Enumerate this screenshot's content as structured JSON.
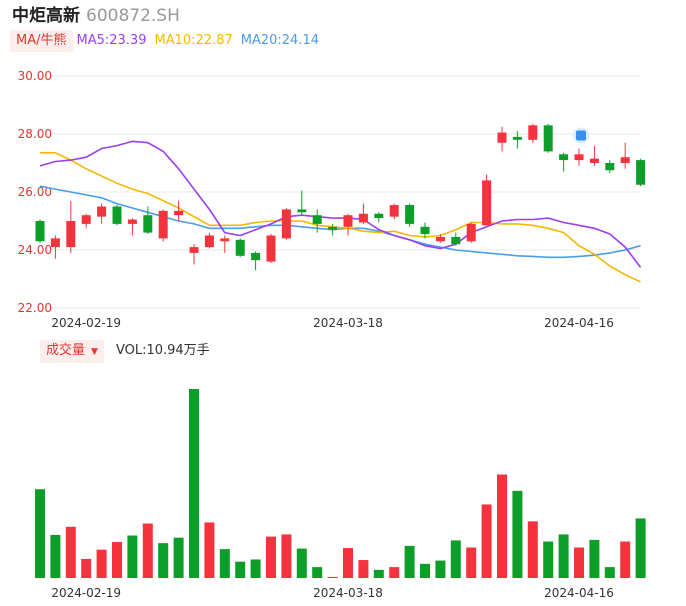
{
  "header": {
    "name": "中炬高新",
    "code": "600872.SH"
  },
  "ma_legend": {
    "tag": "MA/牛熊",
    "items": [
      {
        "label": "MA5:23.39",
        "color": "#9b3ff0"
      },
      {
        "label": "MA10:22.87",
        "color": "#f5b800"
      },
      {
        "label": "MA20:24.14",
        "color": "#4a9ee8"
      }
    ]
  },
  "volume_legend": {
    "tag": "成交量",
    "caret": "▼",
    "label": "VOL:10.94万手"
  },
  "colors": {
    "up": "#f5333f",
    "down": "#0d9e2a",
    "axis_text": "#e2382e",
    "date_text": "#333333",
    "grid": "#e8e8e8"
  },
  "chart_data": [
    {
      "type": "candlestick",
      "y_ticks": [
        "30.00",
        "28.00",
        "26.00",
        "24.00",
        "22.00"
      ],
      "ylim": [
        22,
        30
      ],
      "x_tick_labels": [
        {
          "index": 3,
          "label": "2024-02-19"
        },
        {
          "index": 20,
          "label": "2024-03-18"
        },
        {
          "index": 35,
          "label": "2024-04-16"
        }
      ],
      "candles": [
        {
          "o": 25.0,
          "c": 24.3,
          "h": 25.05,
          "l": 24.25
        },
        {
          "o": 24.1,
          "c": 24.4,
          "h": 24.5,
          "l": 23.7
        },
        {
          "o": 24.1,
          "c": 25.0,
          "h": 25.7,
          "l": 23.9
        },
        {
          "o": 24.9,
          "c": 25.2,
          "h": 25.25,
          "l": 24.75
        },
        {
          "o": 25.15,
          "c": 25.5,
          "h": 25.6,
          "l": 24.9
        },
        {
          "o": 25.5,
          "c": 24.9,
          "h": 25.55,
          "l": 24.85
        },
        {
          "o": 24.9,
          "c": 25.05,
          "h": 25.1,
          "l": 24.5
        },
        {
          "o": 25.2,
          "c": 24.6,
          "h": 25.5,
          "l": 24.55
        },
        {
          "o": 24.4,
          "c": 25.35,
          "h": 25.4,
          "l": 24.3
        },
        {
          "o": 25.2,
          "c": 25.35,
          "h": 25.7,
          "l": 25.0
        },
        {
          "o": 23.9,
          "c": 24.1,
          "h": 24.2,
          "l": 23.5
        },
        {
          "o": 24.1,
          "c": 24.5,
          "h": 24.6,
          "l": 24.05
        },
        {
          "o": 24.3,
          "c": 24.4,
          "h": 24.5,
          "l": 23.9
        },
        {
          "o": 24.35,
          "c": 23.8,
          "h": 24.4,
          "l": 23.75
        },
        {
          "o": 23.9,
          "c": 23.65,
          "h": 23.95,
          "l": 23.3
        },
        {
          "o": 23.6,
          "c": 24.5,
          "h": 24.55,
          "l": 23.55
        },
        {
          "o": 24.4,
          "c": 25.4,
          "h": 25.45,
          "l": 24.35
        },
        {
          "o": 25.4,
          "c": 25.3,
          "h": 26.05,
          "l": 25.2
        },
        {
          "o": 25.2,
          "c": 24.9,
          "h": 25.4,
          "l": 24.6
        },
        {
          "o": 24.8,
          "c": 24.7,
          "h": 24.9,
          "l": 24.5
        },
        {
          "o": 24.8,
          "c": 25.2,
          "h": 25.25,
          "l": 24.5
        },
        {
          "o": 24.95,
          "c": 25.25,
          "h": 25.6,
          "l": 24.9
        },
        {
          "o": 25.25,
          "c": 25.1,
          "h": 25.3,
          "l": 24.95
        },
        {
          "o": 25.15,
          "c": 25.55,
          "h": 25.6,
          "l": 25.05
        },
        {
          "o": 25.55,
          "c": 24.9,
          "h": 25.6,
          "l": 24.8
        },
        {
          "o": 24.8,
          "c": 24.55,
          "h": 24.95,
          "l": 24.4
        },
        {
          "o": 24.3,
          "c": 24.45,
          "h": 24.55,
          "l": 24.25
        },
        {
          "o": 24.45,
          "c": 24.2,
          "h": 24.6,
          "l": 24.15
        },
        {
          "o": 24.3,
          "c": 24.9,
          "h": 24.95,
          "l": 24.25
        },
        {
          "o": 24.85,
          "c": 26.4,
          "h": 26.6,
          "l": 24.85
        },
        {
          "o": 27.7,
          "c": 28.05,
          "h": 28.25,
          "l": 27.4
        },
        {
          "o": 27.9,
          "c": 27.8,
          "h": 28.1,
          "l": 27.5
        },
        {
          "o": 27.8,
          "c": 28.3,
          "h": 28.35,
          "l": 27.7
        },
        {
          "o": 28.3,
          "c": 27.4,
          "h": 28.35,
          "l": 27.35
        },
        {
          "o": 27.3,
          "c": 27.1,
          "h": 27.35,
          "l": 26.7
        },
        {
          "o": 27.1,
          "c": 27.3,
          "h": 27.5,
          "l": 26.9
        },
        {
          "o": 27.0,
          "c": 27.15,
          "h": 27.6,
          "l": 26.9
        },
        {
          "o": 27.0,
          "c": 26.75,
          "h": 27.1,
          "l": 26.65
        },
        {
          "o": 27.0,
          "c": 27.2,
          "h": 27.7,
          "l": 26.8
        },
        {
          "o": 27.1,
          "c": 26.25,
          "h": 27.15,
          "l": 26.2
        }
      ],
      "ma5": [
        26.9,
        27.05,
        27.1,
        27.2,
        27.5,
        27.6,
        27.75,
        27.7,
        27.4,
        26.8,
        26.1,
        25.4,
        24.6,
        24.5,
        24.7,
        24.9,
        25.15,
        25.2,
        25.15,
        25.1,
        25.1,
        25.05,
        24.7,
        24.5,
        24.35,
        24.15,
        24.05,
        24.2,
        24.6,
        24.8,
        25.0,
        25.05,
        25.05,
        25.1,
        24.95,
        24.85,
        24.75,
        24.55,
        24.1,
        23.4
      ],
      "ma10": [
        27.35,
        27.35,
        27.1,
        26.8,
        26.55,
        26.3,
        26.1,
        25.95,
        25.7,
        25.45,
        25.15,
        24.85,
        24.85,
        24.85,
        24.95,
        25.0,
        25.0,
        25.0,
        24.85,
        24.8,
        24.75,
        24.65,
        24.6,
        24.65,
        24.5,
        24.45,
        24.5,
        24.7,
        24.95,
        24.95,
        24.9,
        24.9,
        24.85,
        24.75,
        24.6,
        24.15,
        23.85,
        23.45,
        23.15,
        22.9
      ],
      "ma20": [
        26.2,
        26.1,
        26.0,
        25.9,
        25.8,
        25.6,
        25.45,
        25.3,
        25.15,
        25.0,
        24.9,
        24.75,
        24.75,
        24.75,
        24.8,
        24.85,
        24.85,
        24.8,
        24.75,
        24.7,
        24.75,
        24.75,
        24.65,
        24.5,
        24.35,
        24.2,
        24.1,
        24.0,
        23.95,
        23.9,
        23.85,
        23.8,
        23.78,
        23.75,
        23.75,
        23.78,
        23.82,
        23.9,
        24.0,
        24.15
      ]
    },
    {
      "type": "bar",
      "label": "VOL:10.94万手",
      "x_tick_labels": [
        {
          "index": 3,
          "label": "2024-02-19"
        },
        {
          "index": 20,
          "label": "2024-03-18"
        },
        {
          "index": 35,
          "label": "2024-04-16"
        }
      ],
      "values": [
        16.3,
        7.9,
        9.4,
        3.5,
        5.2,
        6.6,
        7.8,
        10.0,
        6.4,
        7.4,
        34.7,
        10.2,
        5.3,
        3.0,
        3.4,
        7.6,
        8.0,
        5.4,
        2.0,
        0.2,
        5.5,
        3.3,
        1.5,
        2.0,
        5.9,
        2.6,
        3.2,
        6.9,
        5.6,
        13.5,
        19.0,
        16.0,
        10.4,
        6.7,
        8.0,
        5.6,
        7.0,
        2.0,
        6.7,
        10.94
      ],
      "colors": [
        "down",
        "down",
        "up",
        "up",
        "up",
        "up",
        "down",
        "up",
        "down",
        "down",
        "down",
        "up",
        "down",
        "down",
        "down",
        "up",
        "up",
        "down",
        "down",
        "up",
        "up",
        "up",
        "down",
        "up",
        "down",
        "down",
        "down",
        "down",
        "up",
        "up",
        "up",
        "down",
        "up",
        "down",
        "down",
        "up",
        "down",
        "down",
        "up",
        "down"
      ]
    }
  ]
}
